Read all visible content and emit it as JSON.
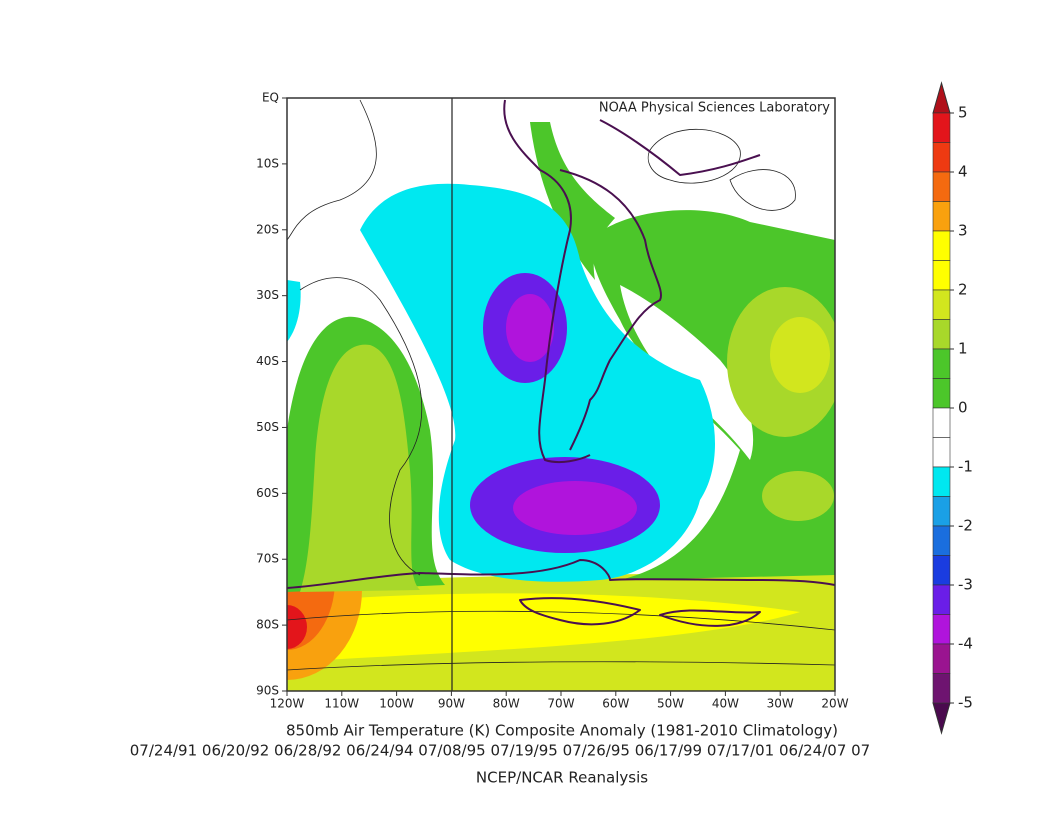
{
  "header": {
    "watermark": "NOAA Physical Sciences Laboratory"
  },
  "map": {
    "lat_ticks": [
      "EQ",
      "10S",
      "20S",
      "30S",
      "40S",
      "50S",
      "60S",
      "70S",
      "80S",
      "90S"
    ],
    "lon_ticks": [
      "120W",
      "110W",
      "100W",
      "90W",
      "80W",
      "70W",
      "60W",
      "50W",
      "40W",
      "30W",
      "20W"
    ]
  },
  "colorbar": {
    "lim": [
      -5,
      5
    ],
    "ticks": [
      5,
      4,
      3,
      2,
      1,
      0,
      -1,
      -2,
      -3,
      -4,
      -5
    ],
    "colors": [
      "#e3151b",
      "#ee3a12",
      "#f46a10",
      "#f9a10e",
      "#ffff00",
      "#ffff00",
      "#d2e61e",
      "#a8d82a",
      "#4cc62a",
      "#4cc62a",
      "#ffffff",
      "#ffffff",
      "#00e8f0",
      "#1aa0e6",
      "#1a6ede",
      "#1a3ce0",
      "#6a1ee8",
      "#b014dc",
      "#9a1490",
      "#6e1470"
    ],
    "over_color": "#b0101a",
    "under_color": "#4a0a4e"
  },
  "footer": {
    "title": "850mb Air Temperature (K) Composite Anomaly (1981-2010 Climatology)",
    "dates": "07/24/91 06/20/92 06/28/92 06/24/94 07/08/95 07/19/95 07/26/95 06/17/99 07/17/01 06/24/07 07",
    "source": "NCEP/NCAR Reanalysis"
  }
}
